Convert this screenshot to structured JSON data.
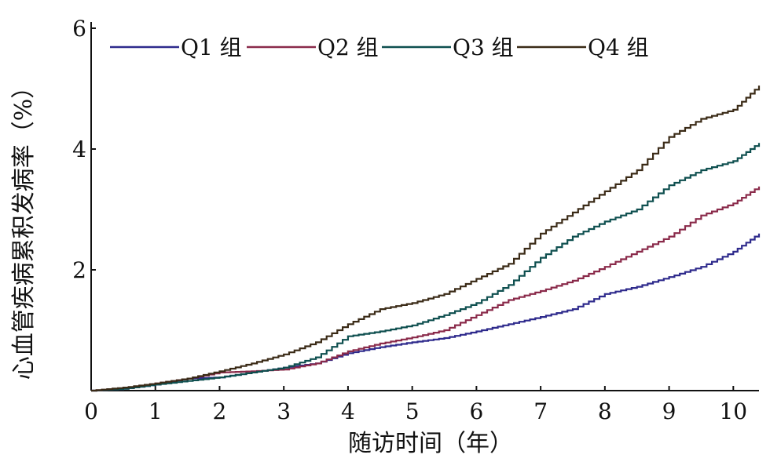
{
  "chart_data": {
    "type": "line",
    "step": true,
    "title": "",
    "xlabel": "随访时间（年）",
    "ylabel": "心血管疾病累积发病率（%）",
    "xlim": [
      0,
      10.4
    ],
    "ylim": [
      0,
      6
    ],
    "xticks": [
      0,
      1,
      2,
      3,
      4,
      5,
      6,
      7,
      8,
      9,
      10
    ],
    "yticks": [
      2,
      4,
      6
    ],
    "grid": false,
    "legend": "top, horizontal",
    "series": [
      {
        "name": "Q1 组",
        "color": "#2e2a8c",
        "points": [
          [
            0,
            0
          ],
          [
            0.5,
            0.03
          ],
          [
            1,
            0.1
          ],
          [
            1.5,
            0.2
          ],
          [
            2,
            0.22
          ],
          [
            2.5,
            0.3
          ],
          [
            3,
            0.38
          ],
          [
            3.5,
            0.45
          ],
          [
            4,
            0.62
          ],
          [
            4.5,
            0.72
          ],
          [
            5,
            0.8
          ],
          [
            5.5,
            0.87
          ],
          [
            6,
            0.98
          ],
          [
            6.5,
            1.1
          ],
          [
            7,
            1.22
          ],
          [
            7.5,
            1.35
          ],
          [
            8,
            1.6
          ],
          [
            8.5,
            1.72
          ],
          [
            9,
            1.88
          ],
          [
            9.5,
            2.05
          ],
          [
            10,
            2.3
          ],
          [
            10.4,
            2.6
          ]
        ]
      },
      {
        "name": "Q2 组",
        "color": "#8a2a4a",
        "points": [
          [
            0,
            0
          ],
          [
            0.5,
            0.04
          ],
          [
            1,
            0.12
          ],
          [
            1.5,
            0.2
          ],
          [
            2,
            0.3
          ],
          [
            2.5,
            0.32
          ],
          [
            3,
            0.35
          ],
          [
            3.5,
            0.45
          ],
          [
            4,
            0.65
          ],
          [
            4.5,
            0.78
          ],
          [
            5,
            0.88
          ],
          [
            5.5,
            1.0
          ],
          [
            6,
            1.25
          ],
          [
            6.5,
            1.5
          ],
          [
            7,
            1.65
          ],
          [
            7.5,
            1.82
          ],
          [
            8,
            2.05
          ],
          [
            8.5,
            2.3
          ],
          [
            9,
            2.55
          ],
          [
            9.5,
            2.9
          ],
          [
            10,
            3.1
          ],
          [
            10.4,
            3.38
          ]
        ]
      },
      {
        "name": "Q3 组",
        "color": "#0e4f4f",
        "points": [
          [
            0,
            0
          ],
          [
            0.5,
            0.03
          ],
          [
            1,
            0.1
          ],
          [
            1.5,
            0.16
          ],
          [
            2,
            0.22
          ],
          [
            2.5,
            0.3
          ],
          [
            3,
            0.38
          ],
          [
            3.5,
            0.55
          ],
          [
            4,
            0.9
          ],
          [
            4.5,
            0.98
          ],
          [
            5,
            1.08
          ],
          [
            5.5,
            1.25
          ],
          [
            6,
            1.45
          ],
          [
            6.5,
            1.75
          ],
          [
            7,
            2.2
          ],
          [
            7.5,
            2.55
          ],
          [
            8,
            2.8
          ],
          [
            8.5,
            3.0
          ],
          [
            9,
            3.4
          ],
          [
            9.5,
            3.65
          ],
          [
            10,
            3.8
          ],
          [
            10.4,
            4.1
          ]
        ]
      },
      {
        "name": "Q4 组",
        "color": "#3a2a16",
        "points": [
          [
            0,
            0
          ],
          [
            0.5,
            0.05
          ],
          [
            1,
            0.12
          ],
          [
            1.5,
            0.2
          ],
          [
            2,
            0.32
          ],
          [
            2.5,
            0.45
          ],
          [
            3,
            0.6
          ],
          [
            3.5,
            0.8
          ],
          [
            4,
            1.1
          ],
          [
            4.5,
            1.35
          ],
          [
            5,
            1.45
          ],
          [
            5.5,
            1.6
          ],
          [
            6,
            1.85
          ],
          [
            6.5,
            2.1
          ],
          [
            7,
            2.6
          ],
          [
            7.5,
            2.95
          ],
          [
            8,
            3.3
          ],
          [
            8.5,
            3.65
          ],
          [
            9,
            4.2
          ],
          [
            9.5,
            4.5
          ],
          [
            10,
            4.65
          ],
          [
            10.4,
            5.05
          ]
        ]
      }
    ]
  }
}
